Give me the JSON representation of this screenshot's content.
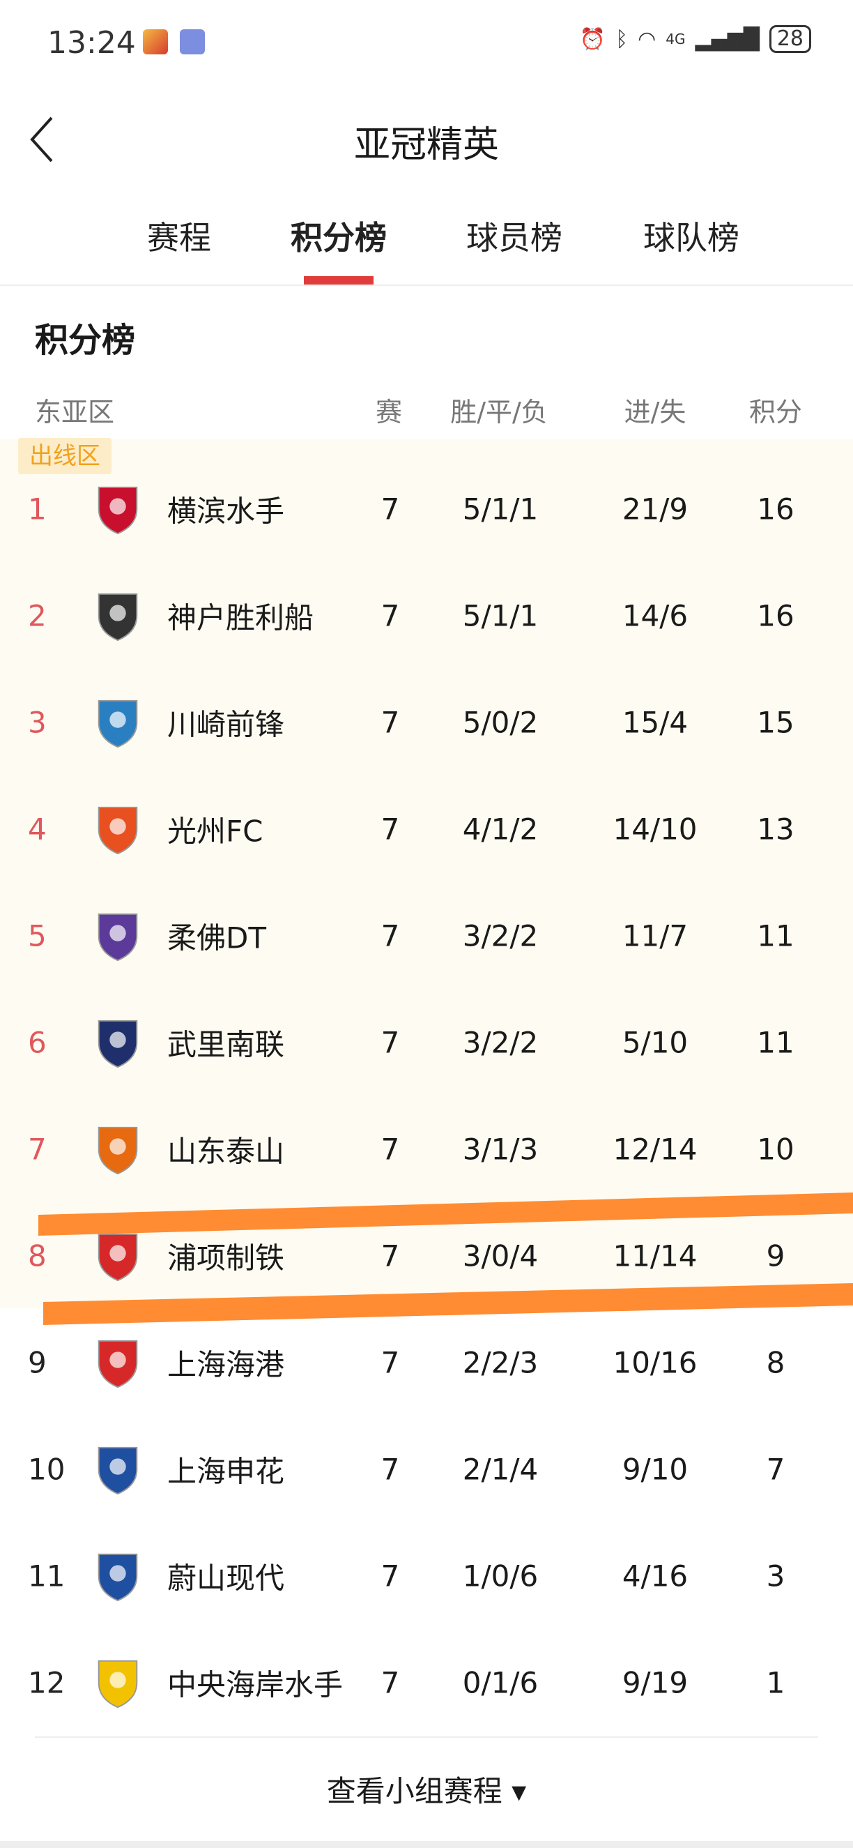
{
  "status_bar": {
    "time": "13:24",
    "signal": "4G",
    "battery": "28"
  },
  "header": {
    "title": "亚冠精英"
  },
  "tabs": [
    {
      "label": "赛程"
    },
    {
      "label": "积分榜",
      "active": true
    },
    {
      "label": "球员榜"
    },
    {
      "label": "球队榜"
    }
  ],
  "section_title": "积分榜",
  "table": {
    "group": "东亚区",
    "columns": [
      "赛",
      "胜/平/负",
      "进/失",
      "积分"
    ],
    "zone_label": "出线区",
    "qualify_color": "#e0585d",
    "rows": [
      {
        "rank": "1",
        "team": "横滨水手",
        "played": "7",
        "wdl": "5/1/1",
        "goals": "21/9",
        "points": "16",
        "color": "#c8102e"
      },
      {
        "rank": "2",
        "team": "神户胜利船",
        "played": "7",
        "wdl": "5/1/1",
        "goals": "14/6",
        "points": "16",
        "color": "#333333"
      },
      {
        "rank": "3",
        "team": "川崎前锋",
        "played": "7",
        "wdl": "5/0/2",
        "goals": "15/4",
        "points": "15",
        "color": "#2a7fc1"
      },
      {
        "rank": "4",
        "team": "光州FC",
        "played": "7",
        "wdl": "4/1/2",
        "goals": "14/10",
        "points": "13",
        "color": "#e8501f"
      },
      {
        "rank": "5",
        "team": "柔佛DT",
        "played": "7",
        "wdl": "3/2/2",
        "goals": "11/7",
        "points": "11",
        "color": "#5b3a9a"
      },
      {
        "rank": "6",
        "team": "武里南联",
        "played": "7",
        "wdl": "3/2/2",
        "goals": "5/10",
        "points": "11",
        "color": "#1e2f6b"
      },
      {
        "rank": "7",
        "team": "山东泰山",
        "played": "7",
        "wdl": "3/1/3",
        "goals": "12/14",
        "points": "10",
        "color": "#e86a10"
      },
      {
        "rank": "8",
        "team": "浦项制铁",
        "played": "7",
        "wdl": "3/0/4",
        "goals": "11/14",
        "points": "9",
        "color": "#d62828"
      },
      {
        "rank": "9",
        "team": "上海海港",
        "played": "7",
        "wdl": "2/2/3",
        "goals": "10/16",
        "points": "8",
        "color": "#d62828"
      },
      {
        "rank": "10",
        "team": "上海申花",
        "played": "7",
        "wdl": "2/1/4",
        "goals": "9/10",
        "points": "7",
        "color": "#1f4fa0"
      },
      {
        "rank": "11",
        "team": "蔚山现代",
        "played": "7",
        "wdl": "1/0/6",
        "goals": "4/16",
        "points": "3",
        "color": "#1f4fa0"
      },
      {
        "rank": "12",
        "team": "中央海岸水手",
        "played": "7",
        "wdl": "0/1/6",
        "goals": "9/19",
        "points": "1",
        "color": "#f2c200"
      }
    ]
  },
  "footer": {
    "more_label": "查看小组赛程 ▾"
  },
  "annotation_color": "#ff8c33"
}
